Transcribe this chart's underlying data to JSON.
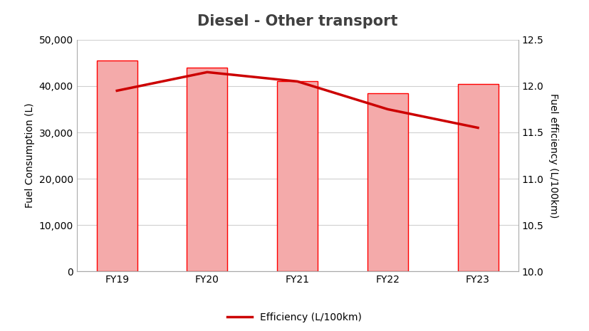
{
  "title": "Diesel - Other transport",
  "categories": [
    "FY19",
    "FY20",
    "FY21",
    "FY22",
    "FY23"
  ],
  "bar_values": [
    45500,
    44000,
    41000,
    38500,
    40500
  ],
  "line_values": [
    11.95,
    12.15,
    12.05,
    11.75,
    11.55
  ],
  "bar_color": "#F4AAAA",
  "bar_edge_color": "#FF0000",
  "line_color": "#CC0000",
  "ylabel_left": "Fuel Consumption (L)",
  "ylabel_right": "Fuel efficiency (L/100km)",
  "ylim_left": [
    0,
    50000
  ],
  "ylim_right": [
    10.0,
    12.5
  ],
  "yticks_left": [
    0,
    10000,
    20000,
    30000,
    40000,
    50000
  ],
  "yticks_right": [
    10.0,
    10.5,
    11.0,
    11.5,
    12.0,
    12.5
  ],
  "legend_label": "Efficiency (L/100km)",
  "title_fontsize": 15,
  "label_fontsize": 10,
  "tick_fontsize": 10,
  "background_color": "#ffffff",
  "grid_color": "#d0d0d0",
  "bar_width": 0.45
}
